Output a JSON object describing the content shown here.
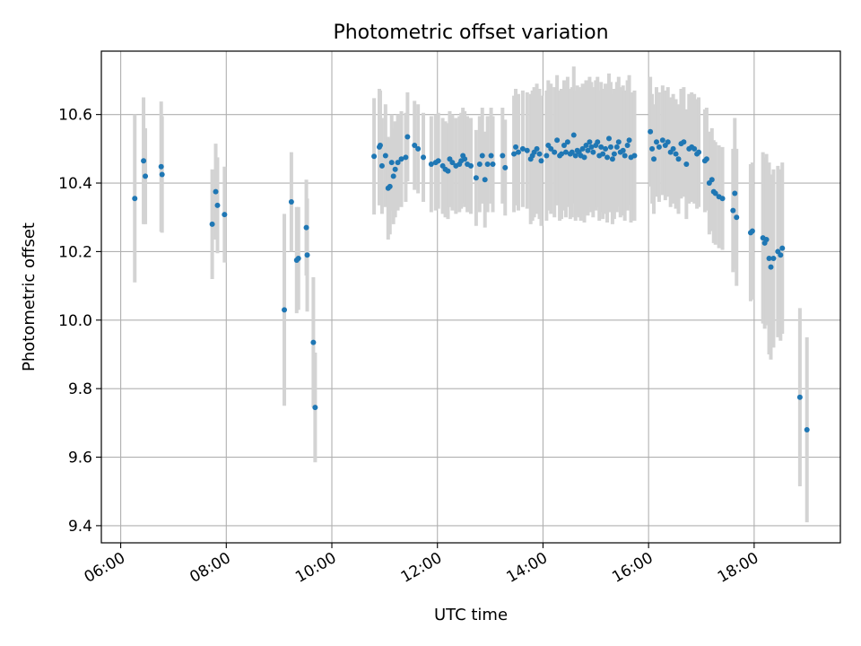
{
  "chart_data": {
    "type": "scatter",
    "title": "Photometric offset variation",
    "xlabel": "UTC time",
    "ylabel": "Photometric offset",
    "xlim": [
      "05:38",
      "19:38"
    ],
    "ylim": [
      9.35,
      10.785
    ],
    "x_ticks": [
      "06:00",
      "08:00",
      "10:00",
      "12:00",
      "14:00",
      "16:00",
      "18:00"
    ],
    "y_ticks": [
      "9.4",
      "9.6",
      "9.8",
      "10.0",
      "10.2",
      "10.4",
      "10.6"
    ],
    "grid": true,
    "colors": {
      "point": "#1f77b4",
      "errorbar": "#d3d3d3",
      "grid": "#b0b0b0"
    },
    "points": [
      [
        "06:16",
        10.355,
        0.245
      ],
      [
        "06:26",
        10.465,
        0.185
      ],
      [
        "06:28",
        10.42,
        0.14
      ],
      [
        "06:46",
        10.448,
        0.19
      ],
      [
        "06:47",
        10.425,
        0.17
      ],
      [
        "07:44",
        10.28,
        0.16
      ],
      [
        "07:48",
        10.375,
        0.14
      ],
      [
        "07:50",
        10.335,
        0.14
      ],
      [
        "07:58",
        10.308,
        0.14
      ],
      [
        "09:06",
        10.03,
        0.28
      ],
      [
        "09:14",
        10.345,
        0.145
      ],
      [
        "09:20",
        10.175,
        0.155
      ],
      [
        "09:22",
        10.18,
        0.15
      ],
      [
        "09:31",
        10.27,
        0.14
      ],
      [
        "09:32",
        10.19,
        0.165
      ],
      [
        "09:39",
        9.935,
        0.19
      ],
      [
        "09:41",
        9.745,
        0.16
      ],
      [
        "10:48",
        10.478,
        0.17
      ],
      [
        "10:54",
        10.505,
        0.17
      ],
      [
        "10:55",
        10.51,
        0.16
      ],
      [
        "10:57",
        10.45,
        0.14
      ],
      [
        "11:01",
        10.48,
        0.15
      ],
      [
        "11:04",
        10.385,
        0.15
      ],
      [
        "11:06",
        10.39,
        0.14
      ],
      [
        "11:08",
        10.46,
        0.14
      ],
      [
        "11:10",
        10.42,
        0.14
      ],
      [
        "11:12",
        10.44,
        0.14
      ],
      [
        "11:15",
        10.46,
        0.14
      ],
      [
        "11:19",
        10.47,
        0.14
      ],
      [
        "11:24",
        10.475,
        0.13
      ],
      [
        "11:26",
        10.535,
        0.13
      ],
      [
        "11:34",
        10.51,
        0.13
      ],
      [
        "11:38",
        10.5,
        0.13
      ],
      [
        "11:44",
        10.475,
        0.13
      ],
      [
        "11:53",
        10.455,
        0.14
      ],
      [
        "11:58",
        10.46,
        0.14
      ],
      [
        "12:01",
        10.465,
        0.14
      ],
      [
        "12:06",
        10.45,
        0.14
      ],
      [
        "12:09",
        10.44,
        0.14
      ],
      [
        "12:12",
        10.435,
        0.14
      ],
      [
        "12:14",
        10.47,
        0.14
      ],
      [
        "12:17",
        10.46,
        0.14
      ],
      [
        "12:21",
        10.45,
        0.14
      ],
      [
        "12:25",
        10.455,
        0.14
      ],
      [
        "12:27",
        10.465,
        0.14
      ],
      [
        "12:29",
        10.48,
        0.14
      ],
      [
        "12:31",
        10.47,
        0.14
      ],
      [
        "12:34",
        10.455,
        0.14
      ],
      [
        "12:38",
        10.45,
        0.14
      ],
      [
        "12:44",
        10.415,
        0.14
      ],
      [
        "12:48",
        10.455,
        0.14
      ],
      [
        "12:51",
        10.48,
        0.14
      ],
      [
        "12:54",
        10.41,
        0.14
      ],
      [
        "12:57",
        10.455,
        0.14
      ],
      [
        "13:01",
        10.48,
        0.14
      ],
      [
        "13:03",
        10.455,
        0.14
      ],
      [
        "13:14",
        10.48,
        0.14
      ],
      [
        "13:17",
        10.445,
        0.14
      ],
      [
        "13:27",
        10.485,
        0.17
      ],
      [
        "13:29",
        10.505,
        0.17
      ],
      [
        "13:32",
        10.49,
        0.17
      ],
      [
        "13:37",
        10.5,
        0.17
      ],
      [
        "13:42",
        10.495,
        0.17
      ],
      [
        "13:46",
        10.47,
        0.19
      ],
      [
        "13:48",
        10.48,
        0.19
      ],
      [
        "13:50",
        10.49,
        0.19
      ],
      [
        "13:53",
        10.5,
        0.19
      ],
      [
        "13:56",
        10.485,
        0.19
      ],
      [
        "13:58",
        10.465,
        0.19
      ],
      [
        "14:04",
        10.48,
        0.19
      ],
      [
        "14:06",
        10.51,
        0.19
      ],
      [
        "14:09",
        10.5,
        0.19
      ],
      [
        "14:13",
        10.49,
        0.19
      ],
      [
        "14:16",
        10.525,
        0.19
      ],
      [
        "14:19",
        10.48,
        0.19
      ],
      [
        "14:21",
        10.485,
        0.19
      ],
      [
        "14:24",
        10.51,
        0.19
      ],
      [
        "14:26",
        10.49,
        0.19
      ],
      [
        "14:28",
        10.52,
        0.19
      ],
      [
        "14:31",
        10.485,
        0.19
      ],
      [
        "14:33",
        10.49,
        0.19
      ],
      [
        "14:35",
        10.54,
        0.2
      ],
      [
        "14:37",
        10.48,
        0.19
      ],
      [
        "14:39",
        10.495,
        0.19
      ],
      [
        "14:41",
        10.49,
        0.19
      ],
      [
        "14:43",
        10.48,
        0.19
      ],
      [
        "14:45",
        10.5,
        0.19
      ],
      [
        "14:47",
        10.475,
        0.19
      ],
      [
        "14:49",
        10.51,
        0.19
      ],
      [
        "14:51",
        10.495,
        0.19
      ],
      [
        "14:53",
        10.52,
        0.19
      ],
      [
        "14:55",
        10.505,
        0.19
      ],
      [
        "14:57",
        10.49,
        0.19
      ],
      [
        "15:00",
        10.51,
        0.19
      ],
      [
        "15:02",
        10.52,
        0.19
      ],
      [
        "15:04",
        10.48,
        0.19
      ],
      [
        "15:06",
        10.505,
        0.19
      ],
      [
        "15:08",
        10.485,
        0.19
      ],
      [
        "15:11",
        10.5,
        0.19
      ],
      [
        "15:13",
        10.475,
        0.19
      ],
      [
        "15:15",
        10.53,
        0.19
      ],
      [
        "15:17",
        10.505,
        0.19
      ],
      [
        "15:19",
        10.47,
        0.19
      ],
      [
        "15:21",
        10.485,
        0.19
      ],
      [
        "15:24",
        10.505,
        0.19
      ],
      [
        "15:26",
        10.52,
        0.19
      ],
      [
        "15:28",
        10.49,
        0.19
      ],
      [
        "15:31",
        10.495,
        0.19
      ],
      [
        "15:33",
        10.48,
        0.19
      ],
      [
        "15:36",
        10.51,
        0.19
      ],
      [
        "15:38",
        10.525,
        0.19
      ],
      [
        "15:40",
        10.475,
        0.19
      ],
      [
        "15:44",
        10.48,
        0.19
      ],
      [
        "16:02",
        10.55,
        0.16
      ],
      [
        "16:04",
        10.5,
        0.16
      ],
      [
        "16:06",
        10.47,
        0.16
      ],
      [
        "16:09",
        10.52,
        0.16
      ],
      [
        "16:12",
        10.505,
        0.16
      ],
      [
        "16:16",
        10.525,
        0.16
      ],
      [
        "16:19",
        10.51,
        0.16
      ],
      [
        "16:22",
        10.52,
        0.16
      ],
      [
        "16:25",
        10.49,
        0.16
      ],
      [
        "16:28",
        10.5,
        0.16
      ],
      [
        "16:31",
        10.485,
        0.16
      ],
      [
        "16:34",
        10.47,
        0.16
      ],
      [
        "16:37",
        10.515,
        0.16
      ],
      [
        "16:40",
        10.52,
        0.16
      ],
      [
        "16:43",
        10.455,
        0.16
      ],
      [
        "16:46",
        10.5,
        0.16
      ],
      [
        "16:49",
        10.505,
        0.16
      ],
      [
        "16:52",
        10.5,
        0.16
      ],
      [
        "16:55",
        10.485,
        0.16
      ],
      [
        "16:57",
        10.49,
        0.16
      ],
      [
        "17:04",
        10.465,
        0.15
      ],
      [
        "17:06",
        10.47,
        0.15
      ],
      [
        "17:09",
        10.4,
        0.15
      ],
      [
        "17:12",
        10.41,
        0.15
      ],
      [
        "17:14",
        10.375,
        0.15
      ],
      [
        "17:16",
        10.37,
        0.15
      ],
      [
        "17:20",
        10.36,
        0.15
      ],
      [
        "17:24",
        10.355,
        0.15
      ],
      [
        "17:36",
        10.32,
        0.18
      ],
      [
        "17:38",
        10.37,
        0.22
      ],
      [
        "17:40",
        10.3,
        0.2
      ],
      [
        "17:56",
        10.255,
        0.2
      ],
      [
        "17:58",
        10.26,
        0.2
      ],
      [
        "18:10",
        10.24,
        0.25
      ],
      [
        "18:12",
        10.225,
        0.25
      ],
      [
        "18:14",
        10.235,
        0.25
      ],
      [
        "18:17",
        10.18,
        0.28
      ],
      [
        "18:19",
        10.155,
        0.27
      ],
      [
        "18:22",
        10.18,
        0.26
      ],
      [
        "18:27",
        10.2,
        0.25
      ],
      [
        "18:30",
        10.19,
        0.25
      ],
      [
        "18:32",
        10.21,
        0.25
      ],
      [
        "18:52",
        9.775,
        0.26
      ],
      [
        "19:00",
        9.68,
        0.27
      ]
    ]
  }
}
